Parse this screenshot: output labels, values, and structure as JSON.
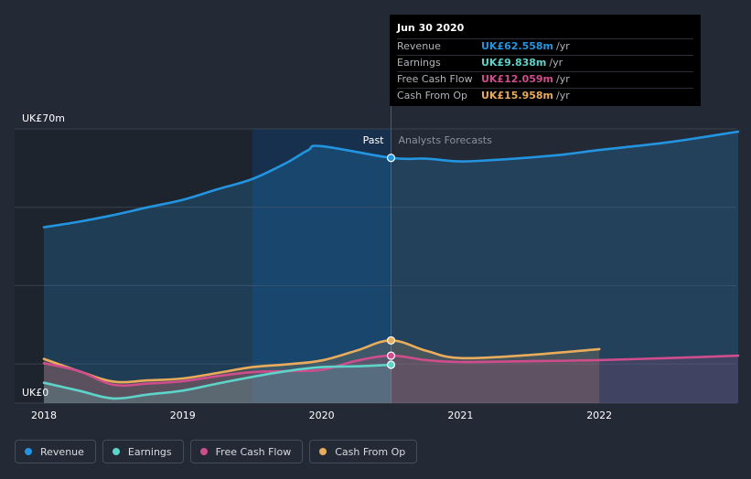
{
  "chart_data": {
    "type": "area",
    "y_axis": {
      "top_label": "UK£70m",
      "bottom_label": "UK£0",
      "ylim": [
        0,
        70
      ]
    },
    "x_ticks": [
      "2018",
      "2019",
      "2020",
      "2021",
      "2022"
    ],
    "x_tick_values": [
      2018,
      2019,
      2020,
      2021,
      2022
    ],
    "xlim": [
      2017.8,
      2023.0
    ],
    "past_label": "Past",
    "forecast_label": "Analysts Forecasts",
    "divider_x": 2020.5,
    "highlight_range": [
      2019.5,
      2020.5
    ],
    "series": [
      {
        "name": "Revenue",
        "color": "#2394df",
        "x": [
          2018.0,
          2018.25,
          2018.5,
          2018.75,
          2019.0,
          2019.25,
          2019.5,
          2019.75,
          2019.9,
          2020.0,
          2020.5,
          2020.75,
          2021.0,
          2021.25,
          2021.5,
          2021.75,
          2022.0,
          2022.5,
          2023.0
        ],
        "y": [
          44.9,
          46.3,
          48.0,
          50.0,
          51.9,
          54.6,
          57.2,
          61.4,
          64.5,
          65.6,
          62.6,
          62.4,
          61.7,
          62.1,
          62.7,
          63.5,
          64.6,
          66.6,
          69.3
        ]
      },
      {
        "name": "Earnings",
        "color": "#5ed3c9",
        "x": [
          2018.0,
          2018.25,
          2018.5,
          2018.75,
          2019.0,
          2019.25,
          2019.5,
          2019.75,
          2020.0,
          2020.25,
          2020.5
        ],
        "y": [
          5.2,
          3.2,
          1.2,
          2.2,
          3.2,
          5.0,
          6.7,
          8.2,
          9.2,
          9.4,
          9.8
        ]
      },
      {
        "name": "Free Cash Flow",
        "color": "#cf4d8c",
        "x": [
          2018.0,
          2018.25,
          2018.5,
          2018.75,
          2019.0,
          2019.25,
          2019.5,
          2019.75,
          2020.0,
          2020.25,
          2020.5,
          2020.75,
          2021.0,
          2021.5,
          2022.0,
          2022.5,
          2023.0
        ],
        "y": [
          10.2,
          8.2,
          4.7,
          5.0,
          5.6,
          6.9,
          7.9,
          8.2,
          8.5,
          10.8,
          12.1,
          11.0,
          10.5,
          10.7,
          11.0,
          11.5,
          12.1
        ]
      },
      {
        "name": "Cash From Op",
        "color": "#e8ac5c",
        "x": [
          2018.0,
          2018.25,
          2018.5,
          2018.75,
          2019.0,
          2019.25,
          2019.5,
          2019.75,
          2020.0,
          2020.25,
          2020.5,
          2020.75,
          2021.0,
          2021.5,
          2022.0
        ],
        "y": [
          11.3,
          8.2,
          5.5,
          5.8,
          6.3,
          7.7,
          9.2,
          9.9,
          10.9,
          13.4,
          16.0,
          13.4,
          11.5,
          12.3,
          13.8
        ]
      }
    ]
  },
  "tooltip": {
    "date": "Jun 30 2020",
    "rows": [
      {
        "label": "Revenue",
        "value": "UK£62.558m",
        "unit": "/yr",
        "color": "#2394df"
      },
      {
        "label": "Earnings",
        "value": "UK£9.838m",
        "unit": "/yr",
        "color": "#5ed3c9"
      },
      {
        "label": "Free Cash Flow",
        "value": "UK£12.059m",
        "unit": "/yr",
        "color": "#cf4d8c"
      },
      {
        "label": "Cash From Op",
        "value": "UK£15.958m",
        "unit": "/yr",
        "color": "#e8ac5c"
      }
    ]
  },
  "legend": [
    {
      "label": "Revenue",
      "color": "#2394df"
    },
    {
      "label": "Earnings",
      "color": "#5ed3c9"
    },
    {
      "label": "Free Cash Flow",
      "color": "#cf4d8c"
    },
    {
      "label": "Cash From Op",
      "color": "#e8ac5c"
    }
  ]
}
